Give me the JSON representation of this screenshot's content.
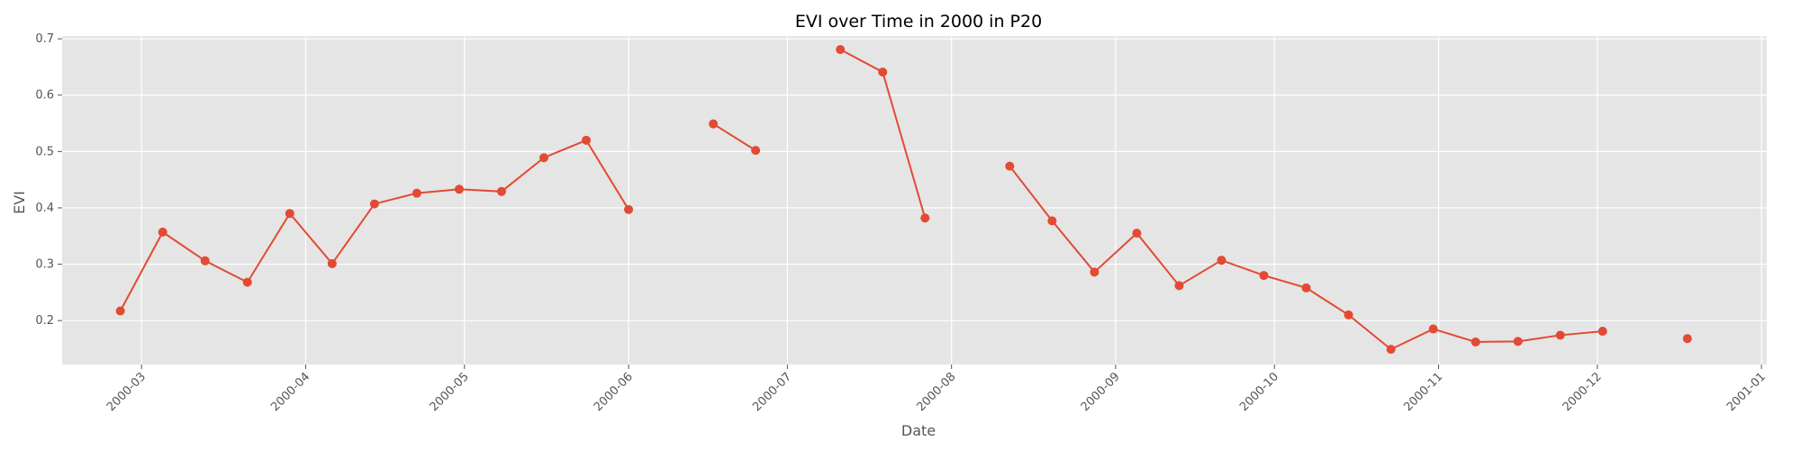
{
  "chart_data": {
    "type": "line",
    "title": "EVI over Time in 2000 in P20",
    "xlabel": "Date",
    "ylabel": "EVI",
    "x_ticks": [
      "2000-03",
      "2000-04",
      "2000-05",
      "2000-06",
      "2000-07",
      "2000-08",
      "2000-09",
      "2000-10",
      "2000-11",
      "2000-12",
      "2001-01"
    ],
    "y_ticks": [
      "0.2",
      "0.3",
      "0.4",
      "0.5",
      "0.6",
      "0.7"
    ],
    "xlim": [
      "2000-02-15",
      "2001-01-02"
    ],
    "ylim": [
      0.122,
      0.705
    ],
    "grid": true,
    "series_color": "#e24a33",
    "background": "#e5e5e5",
    "series": [
      {
        "segments": [
          [
            [
              "2000-02-26",
              0.217
            ],
            [
              "2000-03-05",
              0.357
            ],
            [
              "2000-03-13",
              0.306
            ],
            [
              "2000-03-21",
              0.268
            ],
            [
              "2000-03-29",
              0.39
            ],
            [
              "2000-04-06",
              0.301
            ],
            [
              "2000-04-14",
              0.407
            ],
            [
              "2000-04-22",
              0.426
            ],
            [
              "2000-04-30",
              0.433
            ],
            [
              "2000-05-08",
              0.429
            ],
            [
              "2000-05-16",
              0.489
            ],
            [
              "2000-05-24",
              0.52
            ],
            [
              "2000-06-01",
              0.397
            ]
          ],
          [
            [
              "2000-06-17",
              0.549
            ],
            [
              "2000-06-25",
              0.502
            ]
          ],
          [
            [
              "2000-07-11",
              0.681
            ],
            [
              "2000-07-19",
              0.641
            ],
            [
              "2000-07-27",
              0.382
            ]
          ],
          [
            [
              "2000-08-12",
              0.474
            ],
            [
              "2000-08-20",
              0.377
            ],
            [
              "2000-08-28",
              0.286
            ],
            [
              "2000-09-05",
              0.355
            ],
            [
              "2000-09-13",
              0.262
            ],
            [
              "2000-09-21",
              0.307
            ],
            [
              "2000-09-29",
              0.28
            ],
            [
              "2000-10-07",
              0.258
            ],
            [
              "2000-10-15",
              0.21
            ],
            [
              "2000-10-23",
              0.149
            ],
            [
              "2000-10-31",
              0.185
            ],
            [
              "2000-11-08",
              0.162
            ],
            [
              "2000-11-16",
              0.163
            ],
            [
              "2000-11-24",
              0.174
            ],
            [
              "2000-12-02",
              0.181
            ]
          ],
          [
            [
              "2000-12-18",
              0.168
            ]
          ]
        ]
      }
    ]
  }
}
